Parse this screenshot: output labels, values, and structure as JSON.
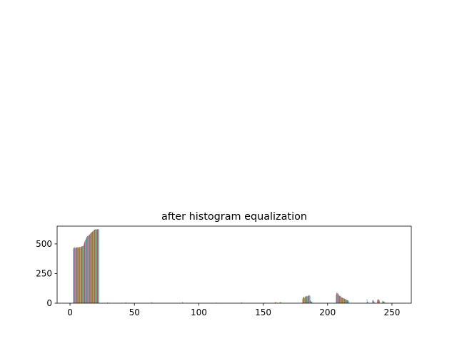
{
  "chart_data": {
    "type": "bar",
    "title": "after histogram equalization",
    "xlabel": "",
    "ylabel": "",
    "xlim": [
      -10,
      265
    ],
    "ylim": [
      0,
      650
    ],
    "x_ticks": [
      0,
      50,
      100,
      150,
      200,
      250
    ],
    "y_ticks": [
      0,
      250,
      500
    ],
    "grid": false,
    "legend": "none",
    "colors": [
      "#1f77b4",
      "#ff7f0e",
      "#2ca02c",
      "#d62728",
      "#9467bd",
      "#8c564b",
      "#e377c2",
      "#7f7f7f",
      "#bcbd22",
      "#17becf"
    ],
    "bins": [
      {
        "x": 3.5,
        "values": [
          462,
          470,
          455,
          468,
          465,
          472,
          460,
          466,
          470,
          463
        ]
      },
      {
        "x": 5.5,
        "values": [
          468,
          472,
          470,
          466,
          474,
          469,
          471,
          473,
          467,
          470
        ]
      },
      {
        "x": 7.5,
        "values": [
          470,
          474,
          472,
          469,
          476,
          471,
          473,
          475,
          470,
          472
        ]
      },
      {
        "x": 9.5,
        "values": [
          475,
          478,
          480,
          476,
          482,
          478,
          481,
          484,
          479,
          483
        ]
      },
      {
        "x": 11.5,
        "values": [
          490,
          500,
          508,
          514,
          520,
          526,
          532,
          536,
          540,
          545
        ]
      },
      {
        "x": 13.5,
        "values": [
          548,
          555,
          560,
          562,
          565,
          566,
          567,
          568,
          569,
          570
        ]
      },
      {
        "x": 15.5,
        "values": [
          572,
          575,
          578,
          580,
          582,
          585,
          588,
          590,
          592,
          594
        ]
      },
      {
        "x": 17.5,
        "values": [
          596,
          598,
          600,
          602,
          604,
          606,
          608,
          610,
          612,
          614
        ]
      },
      {
        "x": 19.5,
        "values": [
          616,
          618,
          620,
          621,
          622,
          622,
          623,
          623,
          624,
          624
        ]
      },
      {
        "x": 21.5,
        "values": [
          620,
          622,
          624,
          623,
          625,
          624,
          622,
          623,
          625,
          624
        ]
      },
      {
        "x": 29.5,
        "values": [
          0,
          3,
          0,
          6,
          0,
          2,
          0,
          4,
          0,
          0
        ]
      },
      {
        "x": 43.5,
        "values": [
          0,
          0,
          5,
          0,
          0,
          7,
          0,
          0,
          4,
          0
        ]
      },
      {
        "x": 63.5,
        "values": [
          0,
          6,
          0,
          0,
          8,
          0,
          0,
          5,
          0,
          0
        ]
      },
      {
        "x": 87.5,
        "values": [
          0,
          0,
          0,
          9,
          0,
          0,
          6,
          0,
          0,
          0
        ]
      },
      {
        "x": 113.5,
        "values": [
          0,
          4,
          0,
          0,
          0,
          5,
          0,
          0,
          3,
          0
        ]
      },
      {
        "x": 133.5,
        "values": [
          5,
          0,
          0,
          6,
          0,
          0,
          0,
          4,
          0,
          0
        ]
      },
      {
        "x": 151.5,
        "values": [
          0,
          0,
          4,
          0,
          0,
          0,
          5,
          0,
          0,
          3
        ]
      },
      {
        "x": 159.5,
        "values": [
          0,
          5,
          0,
          7,
          0,
          6,
          0,
          8,
          0,
          5
        ]
      },
      {
        "x": 163.5,
        "values": [
          4,
          0,
          8,
          0,
          10,
          0,
          6,
          0,
          9,
          0
        ]
      },
      {
        "x": 181.5,
        "values": [
          38,
          45,
          52,
          40,
          48,
          55,
          42,
          50,
          46,
          44
        ]
      },
      {
        "x": 183.5,
        "values": [
          55,
          60,
          52,
          58,
          62,
          57,
          54,
          61,
          59,
          56
        ]
      },
      {
        "x": 185.5,
        "values": [
          60,
          66,
          58,
          63,
          70,
          64,
          61,
          67,
          65,
          62
        ]
      },
      {
        "x": 187.5,
        "values": [
          24,
          18,
          20,
          15,
          12,
          10,
          8,
          6,
          5,
          4
        ]
      },
      {
        "x": 207.5,
        "values": [
          70,
          78,
          85,
          90,
          88,
          82,
          76,
          80,
          84,
          79
        ]
      },
      {
        "x": 209.5,
        "values": [
          72,
          68,
          60,
          65,
          58,
          62,
          55,
          60,
          57,
          52
        ]
      },
      {
        "x": 211.5,
        "values": [
          52,
          48,
          45,
          50,
          42,
          46,
          40,
          44,
          38,
          41
        ]
      },
      {
        "x": 213.5,
        "values": [
          42,
          38,
          35,
          40,
          33,
          36,
          30,
          34,
          28,
          31
        ]
      },
      {
        "x": 215.5,
        "values": [
          28,
          25,
          30,
          24,
          22,
          26,
          20,
          23,
          18,
          21
        ]
      },
      {
        "x": 231.5,
        "values": [
          34,
          0,
          12,
          0,
          8,
          0,
          5,
          0,
          3,
          0
        ]
      },
      {
        "x": 235.5,
        "values": [
          0,
          26,
          20,
          0,
          30,
          22,
          0,
          18,
          0,
          12
        ]
      },
      {
        "x": 239.5,
        "values": [
          24,
          30,
          36,
          28,
          22,
          32,
          26,
          20,
          28,
          24
        ]
      },
      {
        "x": 243.5,
        "values": [
          20,
          14,
          18,
          12,
          10,
          16,
          8,
          12,
          6,
          10
        ]
      }
    ]
  }
}
